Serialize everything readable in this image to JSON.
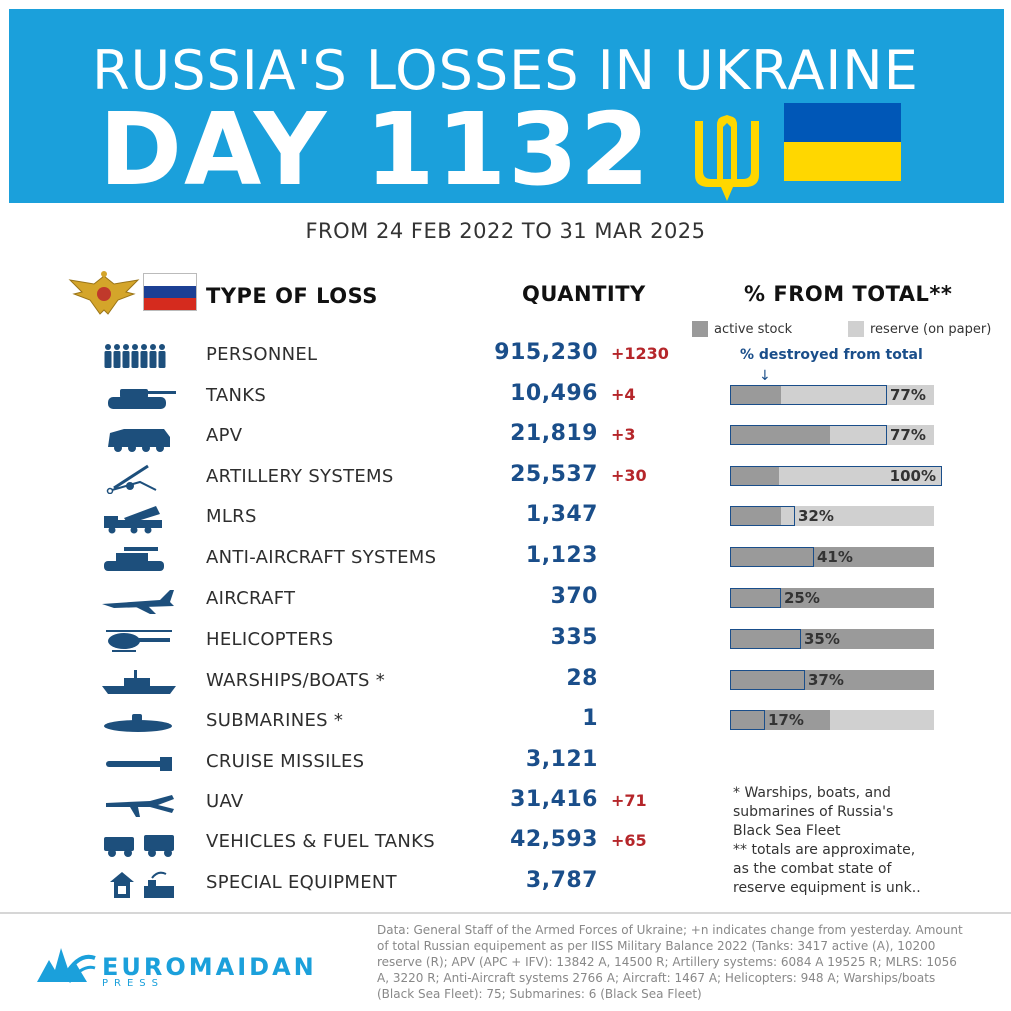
{
  "header": {
    "title_line1": "RUSSIA'S LOSSES IN UKRAINE",
    "title_line2": "DAY 1132",
    "date_range": "FROM 24 FEB 2022 TO 31 MAR 2025"
  },
  "table_headers": {
    "type": "TYPE OF LOSS",
    "quantity": "QUANTITY",
    "percent": "% FROM TOTAL**"
  },
  "legend": {
    "active": "active stock",
    "reserve": "reserve (on paper)",
    "destroyed": "% destroyed from total",
    "arrow": "↓"
  },
  "colors": {
    "banner": "#1ba0db",
    "quantity": "#1a4e8a",
    "delta": "#b5262a",
    "active": "#9a9a9a",
    "reserve": "#d0d0d0"
  },
  "losses": [
    {
      "icon": "soldiers-icon",
      "label": "PERSONNEL",
      "qty": "915,230",
      "delta": "+1230"
    },
    {
      "icon": "tank-icon",
      "label": "TANKS",
      "qty": "10,496",
      "delta": "+4",
      "bar": {
        "active": 0.25,
        "destroyed": 0.77,
        "pct": "77%"
      }
    },
    {
      "icon": "apv-icon",
      "label": "APV",
      "qty": "21,819",
      "delta": "+3",
      "bar": {
        "active": 0.49,
        "destroyed": 0.77,
        "pct": "77%"
      }
    },
    {
      "icon": "artillery-icon",
      "label": "ARTILLERY SYSTEMS",
      "qty": "25,537",
      "delta": "+30",
      "bar": {
        "active": 0.24,
        "destroyed": 1.0,
        "pct": "100%"
      }
    },
    {
      "icon": "mlrs-icon",
      "label": "MLRS",
      "qty": "1,347",
      "delta": "",
      "bar": {
        "active": 0.25,
        "destroyed": 0.32,
        "pct": "32%"
      }
    },
    {
      "icon": "anti-aircraft-icon",
      "label": "ANTI-AIRCRAFT SYSTEMS",
      "qty": "1,123",
      "delta": "",
      "bar": {
        "active": 1.0,
        "destroyed": 0.41,
        "pct": "41%"
      }
    },
    {
      "icon": "aircraft-icon",
      "label": "AIRCRAFT",
      "qty": "370",
      "delta": "",
      "bar": {
        "active": 1.0,
        "destroyed": 0.25,
        "pct": "25%"
      }
    },
    {
      "icon": "helicopter-icon",
      "label": "HELICOPTERS",
      "qty": "335",
      "delta": "",
      "bar": {
        "active": 1.0,
        "destroyed": 0.35,
        "pct": "35%"
      }
    },
    {
      "icon": "warship-icon",
      "label": "WARSHIPS/BOATS *",
      "qty": "28",
      "delta": "",
      "bar": {
        "active": 1.0,
        "destroyed": 0.37,
        "pct": "37%"
      }
    },
    {
      "icon": "submarine-icon",
      "label": "SUBMARINES *",
      "qty": "1",
      "delta": "",
      "bar": {
        "active": 0.49,
        "destroyed": 0.17,
        "pct": "17%"
      }
    },
    {
      "icon": "cruise-missile-icon",
      "label": "CRUISE MISSILES",
      "qty": "3,121",
      "delta": ""
    },
    {
      "icon": "uav-icon",
      "label": "UAV",
      "qty": "31,416",
      "delta": "+71"
    },
    {
      "icon": "vehicles-icon",
      "label": "VEHICLES & FUEL TANKS",
      "qty": "42,593",
      "delta": "+65"
    },
    {
      "icon": "special-equipment-icon",
      "label": "SPECIAL EQUIPMENT",
      "qty": "3,787",
      "delta": ""
    }
  ],
  "notes": {
    "line1": "* Warships, boats, and\nsubmarines of Russia's\nBlack Sea Fleet",
    "line2": "** totals are approximate,\nas the combat state of\nreserve equipment is unk.."
  },
  "source": "Data: General Staff of the Armed Forces of Ukraine; +n indicates change from yesterday. Amount of total Russian equipement as per IISS Military Balance 2022 (Tanks: 3417 active (A), 10200 reserve (R); APV (APC + IFV): 13842 A, 14500 R; Artillery systems: 6084 A 19525 R; MLRS: 1056 A, 3220 R; Anti-Aircraft systems 2766 A; Aircraft: 1467 A; Helicopters: 948 A; Warships/boats (Black Sea Fleet): 75; Submarines: 6 (Black Sea Fleet)",
  "logo": {
    "name": "EUROMAIDAN",
    "sub": "PRESS"
  }
}
